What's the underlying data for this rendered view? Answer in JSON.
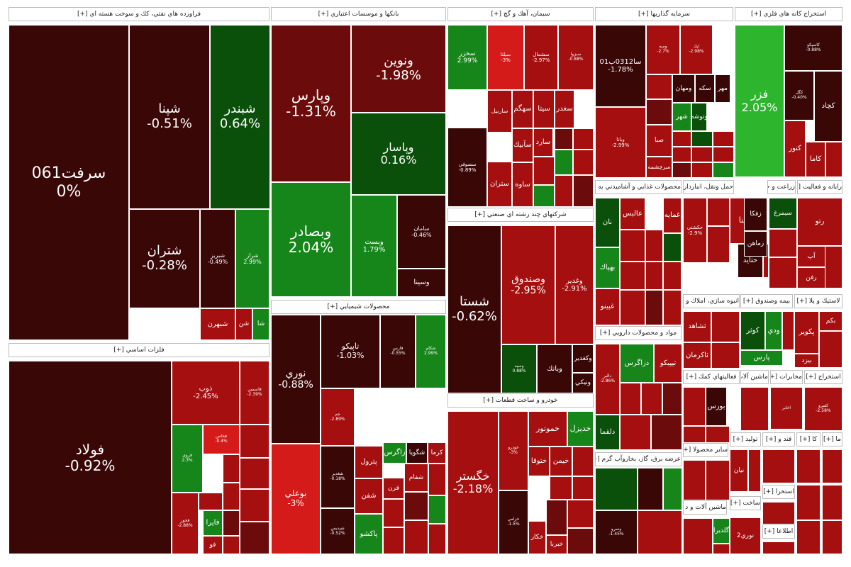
{
  "colors": {
    "deep_red": "#3a0707",
    "dark_red": "#6b0b0b",
    "red": "#a50f10",
    "bright_red": "#d51a1a",
    "dark_green": "#0a4f0a",
    "green": "#17861a",
    "bright_green": "#2db52d"
  },
  "sectors": [
    {
      "label": "فراورده هاي نفتي، كك و سوخت هسته اي [+]"
    },
    {
      "label": "بانكها و موسسات اعتباري [+]"
    },
    {
      "label": "سيمان، آهك و گچ [+]"
    },
    {
      "label": "سرمايه گذاريها [+]"
    },
    {
      "label": "استخراج كانه هاي فلزي [+]"
    },
    {
      "label": "فلزات اساسي [+]"
    },
    {
      "label": "محصولات شيميايي [+]"
    },
    {
      "label": "شركتهاي چند رشته اي صنعتي [+]"
    },
    {
      "label": "خودرو و ساخت قطعات [+]"
    },
    {
      "label": "مواد و محصولات دارويي [+]"
    },
    {
      "label": "عرضه برق، گاز، بخاروآب گرم [+]"
    },
    {
      "label": "محصولات غذايي و آشاميدني به ج [+]"
    },
    {
      "label": "حمل ونقل، انبارداري و [+]"
    },
    {
      "label": "زراعت و خدما [+]"
    },
    {
      "label": "رايانه و فعاليت [+]"
    },
    {
      "label": "انبوه سازي، املاك و م [+]"
    },
    {
      "label": "بيمه وصندوق [+]"
    },
    {
      "label": "لاستيك و پلا [+]"
    },
    {
      "label": "فعاليتهاي كمك [+]"
    },
    {
      "label": "ماشين آلات [+]"
    },
    {
      "label": "مخابرات [+]"
    },
    {
      "label": "استخراج [+]"
    },
    {
      "label": "ساير محصولا [+]"
    },
    {
      "label": "توليد [+]"
    },
    {
      "label": "قند و [+]"
    },
    {
      "label": "كا [+]"
    },
    {
      "label": "ما [+]"
    },
    {
      "label": "ماشين آلات و د [+]"
    },
    {
      "label": "ساخت [+]"
    },
    {
      "label": "استخرا [+]"
    },
    {
      "label": "اطلاعا [+]"
    }
  ],
  "tiles": [
    {
      "symbol": "سرفت061",
      "change": "0%"
    },
    {
      "symbol": "شپنا",
      "change": "-0.51%"
    },
    {
      "symbol": "شبندر",
      "change": "0.64%"
    },
    {
      "symbol": "شتران",
      "change": "-0.28%"
    },
    {
      "symbol": "شبريز",
      "change": "-0.49%"
    },
    {
      "symbol": "شراز",
      "change": "2.99%"
    },
    {
      "symbol": "شبهرن",
      "change": ""
    },
    {
      "symbol": "شن",
      "change": ""
    },
    {
      "symbol": "شا",
      "change": ""
    },
    {
      "symbol": "وپارس",
      "change": "-1.31%"
    },
    {
      "symbol": "ونوين",
      "change": "-1.98%"
    },
    {
      "symbol": "وپاسار",
      "change": "0.16%"
    },
    {
      "symbol": "وبصادر",
      "change": "2.04%"
    },
    {
      "symbol": "وبست",
      "change": "1.79%"
    },
    {
      "symbol": "سامان",
      "change": "-0.46%"
    },
    {
      "symbol": "وسينا",
      "change": ""
    },
    {
      "symbol": "سخزر",
      "change": "2.99%"
    },
    {
      "symbol": "سيلتا",
      "change": "-3%"
    },
    {
      "symbol": "سشمال",
      "change": "-2.97%"
    },
    {
      "symbol": "سبزوا",
      "change": "-0.88%"
    },
    {
      "symbol": "سهگم",
      "change": ""
    },
    {
      "symbol": "سيتا",
      "change": ""
    },
    {
      "symbol": "سغدر",
      "change": ""
    },
    {
      "symbol": "سصوفي",
      "change": "-0.89%"
    },
    {
      "symbol": "ساربيل",
      "change": ""
    },
    {
      "symbol": "سآبيك",
      "change": ""
    },
    {
      "symbol": "سارد",
      "change": ""
    },
    {
      "symbol": "ستران",
      "change": ""
    },
    {
      "symbol": "ساوه",
      "change": ""
    },
    {
      "symbol": "سا0312ب01",
      "change": "-1.78%"
    },
    {
      "symbol": "ومپه",
      "change": "-2.7%"
    },
    {
      "symbol": "اپك",
      "change": "-2.98%"
    },
    {
      "symbol": "ومهان",
      "change": ""
    },
    {
      "symbol": "سكه",
      "change": ""
    },
    {
      "symbol": "مهر",
      "change": ""
    },
    {
      "symbol": "وتوشه",
      "change": ""
    },
    {
      "symbol": "شهر",
      "change": ""
    },
    {
      "symbol": "وبانا",
      "change": "-2.99%"
    },
    {
      "symbol": "صبا",
      "change": ""
    },
    {
      "symbol": "سرچشمه",
      "change": ""
    },
    {
      "symbol": "فزر",
      "change": "2.05%"
    },
    {
      "symbol": "كاسپكو",
      "change": "-0.88%"
    },
    {
      "symbol": "كگل",
      "change": "-0.40%"
    },
    {
      "symbol": "كچاد",
      "change": ""
    },
    {
      "symbol": "كنور",
      "change": ""
    },
    {
      "symbol": "كاما",
      "change": ""
    },
    {
      "symbol": "فولاد",
      "change": "-0.92%"
    },
    {
      "symbol": "ذوب",
      "change": "-2.45%"
    },
    {
      "symbol": "فاسمين",
      "change": "-2.39%"
    },
    {
      "symbol": "فروي",
      "change": "2.3%"
    },
    {
      "symbol": "فخاس",
      "change": "-0.4%"
    },
    {
      "symbol": "فخوز",
      "change": "-2.88%"
    },
    {
      "symbol": "فايرا",
      "change": ""
    },
    {
      "symbol": "فو",
      "change": ""
    },
    {
      "symbol": "نوري",
      "change": "-0.88%"
    },
    {
      "symbol": "تاپيكو",
      "change": "-1.03%"
    },
    {
      "symbol": "فارس",
      "change": "-0.55%"
    },
    {
      "symbol": "شكام",
      "change": "2.99%"
    },
    {
      "symbol": "بوعلي",
      "change": "-3%"
    },
    {
      "symbol": "شغدير",
      "change": "-0.18%"
    },
    {
      "symbol": "شپديس",
      "change": "-0.52%"
    },
    {
      "symbol": "جم",
      "change": "-2.89%"
    },
    {
      "symbol": "پترول",
      "change": ""
    },
    {
      "symbol": "زاگرس",
      "change": ""
    },
    {
      "symbol": "شگويا",
      "change": ""
    },
    {
      "symbol": "كرما",
      "change": ""
    },
    {
      "symbol": "شفن",
      "change": ""
    },
    {
      "symbol": "قرن",
      "change": ""
    },
    {
      "symbol": "شفام",
      "change": ""
    },
    {
      "symbol": "پاكشو",
      "change": ""
    },
    {
      "symbol": "شستا",
      "change": "-0.62%"
    },
    {
      "symbol": "وصندوق",
      "change": "-2.95%"
    },
    {
      "symbol": "وغدير",
      "change": "-2.91%"
    },
    {
      "symbol": "وسپه",
      "change": "0.88%"
    },
    {
      "symbol": "وبانك",
      "change": ""
    },
    {
      "symbol": "وكغدير",
      "change": ""
    },
    {
      "symbol": "ونيكي",
      "change": ""
    },
    {
      "symbol": "خگستر",
      "change": "-2.18%"
    },
    {
      "symbol": "خودرو",
      "change": "-3%"
    },
    {
      "symbol": "خزامي",
      "change": "-1.5%"
    },
    {
      "symbol": "خموتور",
      "change": ""
    },
    {
      "symbol": "خديزل",
      "change": ""
    },
    {
      "symbol": "ختوقا",
      "change": ""
    },
    {
      "symbol": "خيمن",
      "change": ""
    },
    {
      "symbol": "خكار",
      "change": ""
    },
    {
      "symbol": "خبربا",
      "change": ""
    },
    {
      "symbol": "دلقما",
      "change": ""
    },
    {
      "symbol": "دزاگرس",
      "change": ""
    },
    {
      "symbol": "تيپيكو",
      "change": ""
    },
    {
      "symbol": "دالبر",
      "change": "-2.86%"
    },
    {
      "symbol": "وسرو",
      "change": "-1.45%"
    },
    {
      "symbol": "غمايه",
      "change": ""
    },
    {
      "symbol": "عالبس",
      "change": ""
    },
    {
      "symbol": "نان",
      "change": ""
    },
    {
      "symbol": "بهپاك",
      "change": ""
    },
    {
      "symbol": "غبينو",
      "change": ""
    },
    {
      "symbol": "حسينا",
      "change": ""
    },
    {
      "symbol": "حكشتي",
      "change": "-2.9%"
    },
    {
      "symbol": "حتايد",
      "change": ""
    },
    {
      "symbol": "زفكا",
      "change": ""
    },
    {
      "symbol": "زماهن",
      "change": ""
    },
    {
      "symbol": "سيمرغ",
      "change": ""
    },
    {
      "symbol": "رتو",
      "change": ""
    },
    {
      "symbol": "آپ",
      "change": ""
    },
    {
      "symbol": "رفن",
      "change": ""
    },
    {
      "symbol": "ثشاهد",
      "change": ""
    },
    {
      "symbol": "ثاكرمان",
      "change": ""
    },
    {
      "symbol": "كوثر",
      "change": ""
    },
    {
      "symbol": "ودي",
      "change": ""
    },
    {
      "symbol": "پارس",
      "change": ""
    },
    {
      "symbol": "پكوير",
      "change": ""
    },
    {
      "symbol": "بيزد",
      "change": ""
    },
    {
      "symbol": "بكم",
      "change": ""
    },
    {
      "symbol": "بورس",
      "change": ""
    },
    {
      "symbol": "نيان",
      "change": ""
    },
    {
      "symbol": "گلديرا",
      "change": ""
    },
    {
      "symbol": "نوري2",
      "change": ""
    },
    {
      "symbol": "اخابر",
      "change": ""
    },
    {
      "symbol": "كفيرو",
      "change": "-2.58%"
    }
  ]
}
